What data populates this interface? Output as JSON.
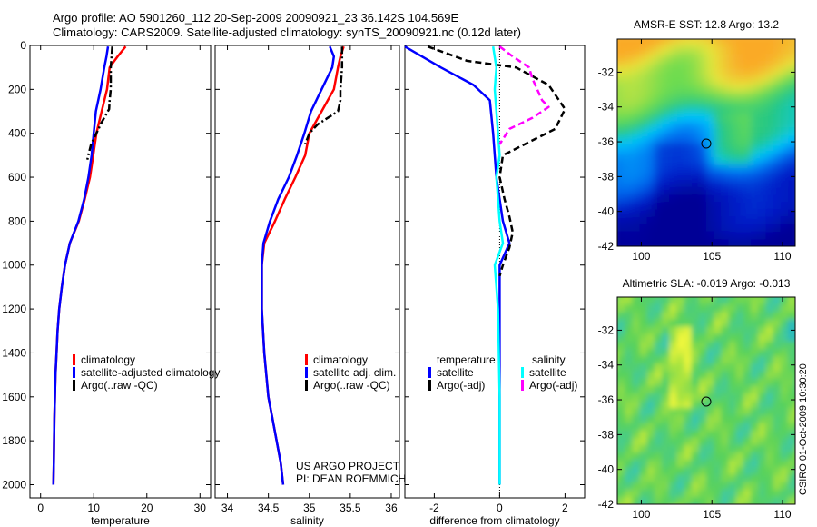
{
  "header": {
    "line1": "Argo profile: AO 5901260_112 20-Sep-2009 20090921_23 36.142S 104.569E",
    "line2": "Climatology: CARS2009. Satellite-adjusted climatology: synTS_20090921.nc (0.12d later)"
  },
  "credit": "CSIRO 01-Oct-2009 10:30:20",
  "project": {
    "line1": "US ARGO PROJECT",
    "line2": "PI: DEAN ROEMMICH"
  },
  "colors": {
    "climatology": "#ff0000",
    "satellite": "#0000ff",
    "argo": "#000000",
    "sat_salinity": "#00ffff",
    "argo_salinity": "#ff00ff"
  },
  "chart_data": [
    {
      "type": "line",
      "xlabel": "temperature",
      "ylabel": "",
      "xlim": [
        -2,
        32
      ],
      "ylim": [
        2060,
        0
      ],
      "y_inverted": true,
      "xticks": [
        0,
        10,
        20,
        30
      ],
      "yticks": [
        0,
        200,
        400,
        600,
        800,
        1000,
        1200,
        1400,
        1600,
        1800,
        2000
      ],
      "legend": {
        "placement": "lower-right",
        "entries": [
          {
            "label": "climatology",
            "color": "#ff0000"
          },
          {
            "label": "satellite-adjusted climatology",
            "color": "#0000ff"
          },
          {
            "label": "Argo(..raw -QC)",
            "color": "#000000"
          }
        ]
      },
      "series": [
        {
          "name": "climatology",
          "color": "#ff0000",
          "style": "solid",
          "x": [
            16,
            14.5,
            13,
            12.5,
            11.5,
            10.5,
            9.9,
            9.3,
            8.3,
            7.2,
            5.5,
            4.6,
            4.0,
            3.5,
            3.2,
            3.0,
            2.8,
            2.6,
            2.5,
            2.4
          ],
          "y": [
            5,
            50,
            100,
            200,
            300,
            400,
            500,
            600,
            700,
            800,
            900,
            1000,
            1100,
            1200,
            1300,
            1400,
            1500,
            1700,
            1900,
            2000
          ]
        },
        {
          "name": "satellite-adjusted climatology",
          "color": "#0000ff",
          "style": "solid",
          "x": [
            12.7,
            12.4,
            12.0,
            11.3,
            10.4,
            10.0,
            9.6,
            9.0,
            8.2,
            7.1,
            5.5,
            4.6,
            4.0,
            3.5,
            3.2,
            3.0,
            2.8,
            2.6,
            2.5,
            2.4
          ],
          "y": [
            5,
            50,
            100,
            200,
            300,
            400,
            500,
            600,
            700,
            800,
            900,
            1000,
            1100,
            1200,
            1300,
            1400,
            1500,
            1700,
            1900,
            2000
          ]
        },
        {
          "name": "Argo(..raw -QC)",
          "color": "#000000",
          "style": "dashdot",
          "x": [
            13.5,
            13.2,
            13.2,
            13.0,
            12.9,
            11.5,
            10.5,
            9.5,
            8.8
          ],
          "y": [
            5,
            100,
            200,
            250,
            290,
            350,
            400,
            450,
            520
          ]
        }
      ]
    },
    {
      "type": "line",
      "xlabel": "salinity",
      "ylabel": "",
      "xlim": [
        33.85,
        36.1
      ],
      "ylim": [
        2060,
        0
      ],
      "y_inverted": true,
      "xticks": [
        34,
        34.5,
        35,
        35.5,
        36
      ],
      "yticks": [
        0,
        200,
        400,
        600,
        800,
        1000,
        1200,
        1400,
        1600,
        1800,
        2000
      ],
      "legend": {
        "placement": "lower-right",
        "entries": [
          {
            "label": "climatology",
            "color": "#ff0000"
          },
          {
            "label": "satellite adj. clim.",
            "color": "#0000ff"
          },
          {
            "label": "Argo(..raw -QC)",
            "color": "#000000"
          }
        ]
      },
      "series": [
        {
          "name": "climatology",
          "color": "#ff0000",
          "style": "solid",
          "x": [
            35.42,
            35.38,
            35.35,
            35.3,
            35.15,
            35.0,
            34.95,
            34.83,
            34.7,
            34.58,
            34.45,
            34.42,
            34.42,
            34.45,
            34.5,
            34.55,
            34.6,
            34.65,
            34.68
          ],
          "y": [
            5,
            50,
            100,
            200,
            300,
            400,
            500,
            600,
            700,
            800,
            900,
            1000,
            1200,
            1400,
            1600,
            1700,
            1800,
            1900,
            2000
          ]
        },
        {
          "name": "satellite adj. clim.",
          "color": "#0000ff",
          "style": "solid",
          "x": [
            35.25,
            35.3,
            35.28,
            35.15,
            35.02,
            34.94,
            34.85,
            34.75,
            34.62,
            34.52,
            34.44,
            34.42,
            34.42,
            34.45,
            34.5,
            34.55,
            34.6,
            34.65,
            34.68
          ],
          "y": [
            5,
            50,
            100,
            200,
            300,
            400,
            500,
            600,
            700,
            800,
            900,
            1000,
            1200,
            1400,
            1600,
            1700,
            1800,
            1900,
            2000
          ]
        },
        {
          "name": "Argo(..raw -QC)",
          "color": "#000000",
          "style": "dashdot",
          "x": [
            35.4,
            35.4,
            35.38,
            35.38,
            35.35,
            35.1,
            35.0,
            34.95
          ],
          "y": [
            5,
            100,
            200,
            250,
            300,
            360,
            400,
            450
          ]
        }
      ]
    },
    {
      "type": "line",
      "xlabel": "difference from climatology",
      "ylabel": "",
      "xlim": [
        -2.9,
        2.6
      ],
      "ylim": [
        2060,
        0
      ],
      "y_inverted": true,
      "xticks": [
        -2,
        0,
        2
      ],
      "yticks": [
        0,
        200,
        400,
        600,
        800,
        1000,
        1200,
        1400,
        1600,
        1800,
        2000
      ],
      "legend": {
        "placement": "lower-center",
        "entries": [
          {
            "label": "temperature",
            "color": ""
          },
          {
            "label": "satellite",
            "color": "#0000ff"
          },
          {
            "label": "Argo(-adj)",
            "color": "#000000"
          },
          {
            "label": "salinity",
            "color": ""
          },
          {
            "label": "satellite",
            "color": "#00ffff"
          },
          {
            "label": "Argo(-adj)",
            "color": "#ff00ff"
          }
        ]
      },
      "series": [
        {
          "name": "temperature satellite",
          "color": "#0000ff",
          "style": "solid",
          "x": [
            -2.9,
            -1.8,
            -0.8,
            -0.3,
            -0.2,
            -0.1,
            0.0,
            0.1,
            0.2,
            0.3,
            0.0,
            0.0,
            0.0,
            0.0
          ],
          "y": [
            5,
            100,
            180,
            250,
            400,
            600,
            700,
            800,
            850,
            900,
            1000,
            1200,
            1600,
            2000
          ]
        },
        {
          "name": "temperature Argo(-adj)",
          "color": "#000000",
          "style": "dashed",
          "x": [
            -2.2,
            -1.0,
            0.5,
            1.5,
            2.0,
            1.7,
            0.9,
            0.1,
            0.0,
            0.15,
            0.3,
            0.4,
            0.3,
            0.1,
            0.0
          ],
          "y": [
            5,
            70,
            100,
            180,
            290,
            380,
            440,
            500,
            600,
            700,
            780,
            850,
            920,
            1000,
            1050
          ]
        },
        {
          "name": "salinity satellite",
          "color": "#00ffff",
          "style": "solid",
          "x": [
            -0.2,
            -0.1,
            -0.15,
            -0.1,
            -0.05,
            0.0,
            -0.1,
            -0.05,
            0.0,
            0.1,
            -0.15,
            -0.05,
            0.0,
            0.0
          ],
          "y": [
            5,
            100,
            200,
            300,
            400,
            500,
            600,
            700,
            800,
            900,
            1000,
            1200,
            1600,
            2000
          ]
        },
        {
          "name": "salinity Argo(-adj)",
          "color": "#ff00ff",
          "style": "dashed",
          "x": [
            0.0,
            0.4,
            0.9,
            1.0,
            1.3,
            1.5,
            1.0,
            0.3,
            0.0
          ],
          "y": [
            5,
            50,
            100,
            150,
            250,
            280,
            330,
            380,
            450
          ]
        }
      ]
    },
    {
      "type": "heatmap",
      "title": "AMSR-E SST: 12.8 Argo: 13.2",
      "xlabel": "",
      "ylabel": "",
      "xlim": [
        98.3,
        110.9
      ],
      "ylim": [
        -42,
        -30.1
      ],
      "xticks": [
        100,
        105,
        110
      ],
      "yticks": [
        -32,
        -34,
        -36,
        -38,
        -40,
        -42
      ],
      "marker": {
        "x": 104.6,
        "y": -36.1
      },
      "grid": false
    },
    {
      "type": "heatmap",
      "title": "Altimetric SLA: -0.019 Argo: -0.013",
      "xlabel": "",
      "ylabel": "",
      "xlim": [
        98.3,
        110.9
      ],
      "ylim": [
        -42,
        -30.1
      ],
      "xticks": [
        100,
        105,
        110
      ],
      "yticks": [
        -32,
        -34,
        -36,
        -38,
        -40,
        -42
      ],
      "marker": {
        "x": 104.6,
        "y": -36.1
      },
      "grid": false
    }
  ]
}
